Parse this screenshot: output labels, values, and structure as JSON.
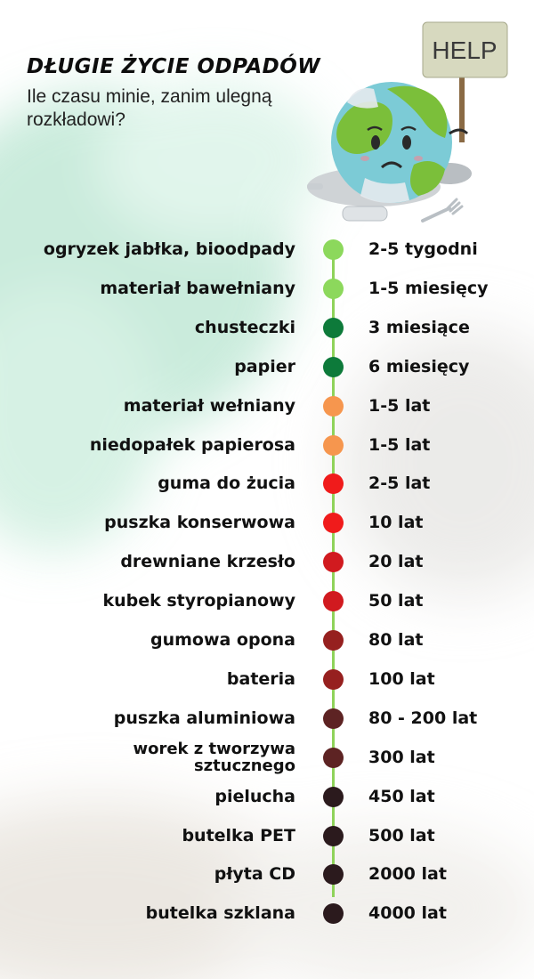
{
  "header": {
    "title": "DŁUGIE ŻYCIE ODPADÓW",
    "subtitle": "Ile czasu minie, zanim ulegną rozkładowi?"
  },
  "mascot": {
    "sign_text": "HELP",
    "icon": "sad-earth-with-help-sign"
  },
  "colors": {
    "line": "#8fd35a",
    "light_green": "#8cd85c",
    "dark_green": "#0d7a3a",
    "orange": "#f6964e",
    "red": "#f01b1b",
    "crimson": "#d11a1f",
    "dark_red": "#96201f",
    "brown": "#5d2323",
    "near_black": "#2b1a1d"
  },
  "items": [
    {
      "name": "ogryzek jabłka, bioodpady",
      "time": "2-5 tygodni",
      "color": "#8cd85c"
    },
    {
      "name": "materiał bawełniany",
      "time": "1-5 miesięcy",
      "color": "#8cd85c"
    },
    {
      "name": "chusteczki",
      "time": "3 miesiące",
      "color": "#0d7a3a"
    },
    {
      "name": "papier",
      "time": "6 miesięcy",
      "color": "#0d7a3a"
    },
    {
      "name": "materiał wełniany",
      "time": "1-5 lat",
      "color": "#f6964e"
    },
    {
      "name": "niedopałek papierosa",
      "time": "1-5 lat",
      "color": "#f6964e"
    },
    {
      "name": "guma do żucia",
      "time": "2-5 lat",
      "color": "#f01b1b"
    },
    {
      "name": "puszka konserwowa",
      "time": "10 lat",
      "color": "#f01b1b"
    },
    {
      "name": "drewniane krzesło",
      "time": "20 lat",
      "color": "#d11a1f"
    },
    {
      "name": "kubek styropianowy",
      "time": "50 lat",
      "color": "#d11a1f"
    },
    {
      "name": "gumowa opona",
      "time": "80 lat",
      "color": "#96201f"
    },
    {
      "name": "bateria",
      "time": "100 lat",
      "color": "#96201f"
    },
    {
      "name": "puszka aluminiowa",
      "time": "80 - 200 lat",
      "color": "#5d2323"
    },
    {
      "name": "worek z tworzywa sztucznego",
      "time": "300 lat",
      "color": "#5d2323"
    },
    {
      "name": "pielucha",
      "time": "450 lat",
      "color": "#2b1a1d"
    },
    {
      "name": "butelka PET",
      "time": "500 lat",
      "color": "#2b1a1d"
    },
    {
      "name": "płyta CD",
      "time": "2000 lat",
      "color": "#2b1a1d"
    },
    {
      "name": "butelka szklana",
      "time": "4000 lat",
      "color": "#2b1a1d"
    }
  ]
}
